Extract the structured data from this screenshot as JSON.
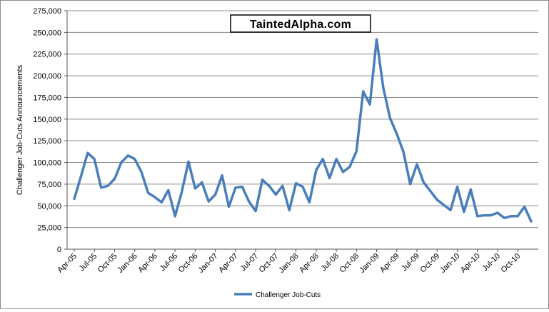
{
  "logo": {
    "text": "TaintedAlpha.com"
  },
  "chart_data": {
    "type": "line",
    "title": "",
    "xlabel": "",
    "ylabel": "Challenger Job-Cuts Announcements",
    "ylim": [
      0,
      275000
    ],
    "y_ticks": [
      0,
      25000,
      50000,
      75000,
      100000,
      125000,
      150000,
      175000,
      200000,
      225000,
      250000,
      275000
    ],
    "y_tick_labels": [
      "0",
      "25,000",
      "50,000",
      "75,000",
      "100,000",
      "125,000",
      "150,000",
      "175,000",
      "200,000",
      "225,000",
      "250,000",
      "275,000"
    ],
    "x_tick_labels": [
      "Apr-05",
      "Jul-05",
      "Oct-05",
      "Jan-06",
      "Apr-06",
      "Jul-06",
      "Oct-06",
      "Jan-07",
      "Apr-07",
      "Jul-07",
      "Oct-07",
      "Jan-08",
      "Apr-08",
      "Jul-08",
      "Oct-08",
      "Jan-09",
      "Apr-09",
      "Jul-09",
      "Oct-09",
      "Jan-10",
      "Apr-10",
      "Jul-10",
      "Oct-10"
    ],
    "grid": true,
    "legend_position": "bottom",
    "series": [
      {
        "name": "Challenger Job-Cuts",
        "color": "#4a7ebb",
        "x": [
          "Apr-05",
          "May-05",
          "Jun-05",
          "Jul-05",
          "Aug-05",
          "Sep-05",
          "Oct-05",
          "Nov-05",
          "Dec-05",
          "Jan-06",
          "Feb-06",
          "Mar-06",
          "Apr-06",
          "May-06",
          "Jun-06",
          "Jul-06",
          "Aug-06",
          "Sep-06",
          "Oct-06",
          "Nov-06",
          "Dec-06",
          "Jan-07",
          "Feb-07",
          "Mar-07",
          "Apr-07",
          "May-07",
          "Jun-07",
          "Jul-07",
          "Aug-07",
          "Sep-07",
          "Oct-07",
          "Nov-07",
          "Dec-07",
          "Jan-08",
          "Feb-08",
          "Mar-08",
          "Apr-08",
          "May-08",
          "Jun-08",
          "Jul-08",
          "Aug-08",
          "Sep-08",
          "Oct-08",
          "Nov-08",
          "Dec-08",
          "Jan-09",
          "Feb-09",
          "Mar-09",
          "Apr-09",
          "May-09",
          "Jun-09",
          "Jul-09",
          "Aug-09",
          "Sep-09",
          "Oct-09",
          "Nov-09",
          "Dec-09",
          "Jan-10",
          "Feb-10",
          "Mar-10",
          "Apr-10",
          "May-10",
          "Jun-10",
          "Jul-10",
          "Aug-10",
          "Sep-10",
          "Oct-10",
          "Nov-10",
          "Dec-10"
        ],
        "values": [
          58000,
          84000,
          111000,
          104000,
          71000,
          73000,
          81000,
          100000,
          108000,
          104000,
          89000,
          65000,
          60000,
          54000,
          68000,
          38000,
          66000,
          101000,
          70000,
          77000,
          55000,
          63000,
          85000,
          49000,
          71000,
          72000,
          55000,
          44000,
          80000,
          73000,
          63000,
          73000,
          45000,
          76000,
          72000,
          54000,
          91000,
          104000,
          82000,
          104000,
          89000,
          95000,
          113000,
          182000,
          167000,
          242000,
          186000,
          151000,
          133000,
          112000,
          75000,
          98000,
          77000,
          67000,
          57000,
          51000,
          45000,
          72000,
          43000,
          69000,
          38000,
          39000,
          39000,
          42000,
          36000,
          38000,
          38000,
          49000,
          32000
        ]
      }
    ]
  }
}
